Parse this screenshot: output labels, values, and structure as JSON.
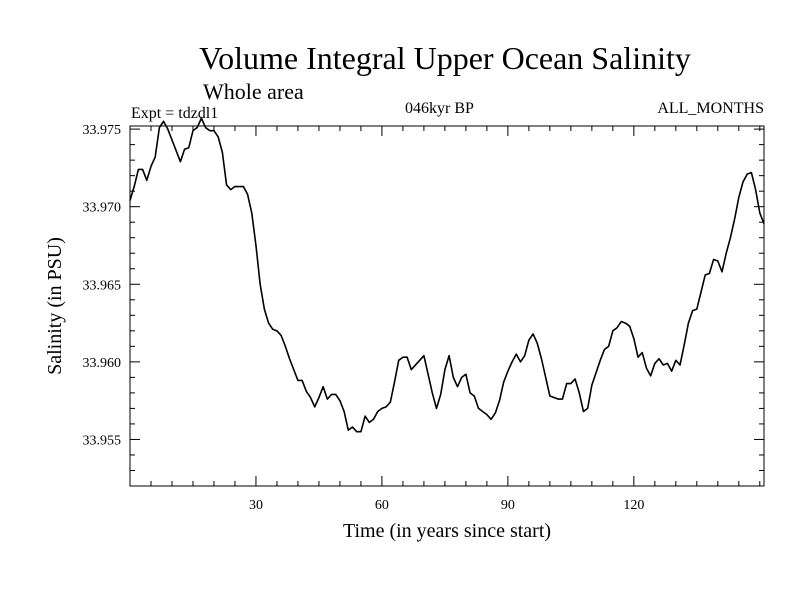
{
  "chart_data": {
    "type": "line",
    "title": "Volume Integral Upper Ocean Salinity",
    "subtitle": "Whole area",
    "annotations": {
      "experiment": "Expt = tdzdl1",
      "period": "046kyr BP",
      "months": "ALL_MONTHS"
    },
    "xlabel": "Time (in years since start)",
    "ylabel": "Salinity (in PSU)",
    "xlim": [
      0,
      151
    ],
    "ylim": [
      33.952,
      33.9752
    ],
    "xticks": [
      30,
      60,
      90,
      120
    ],
    "yticks": [
      33.955,
      33.96,
      33.965,
      33.97,
      33.975
    ],
    "ytick_labels": [
      "33.955",
      "33.960",
      "33.965",
      "33.970",
      "33.975"
    ],
    "series": [
      {
        "name": "Salinity",
        "color": "#000000",
        "x": [
          0,
          1,
          2,
          3,
          4,
          5,
          6,
          7,
          8,
          9,
          10,
          11,
          12,
          13,
          14,
          15,
          16,
          17,
          18,
          19,
          20,
          21,
          22,
          23,
          24,
          25,
          26,
          27,
          28,
          29,
          30,
          31,
          32,
          33,
          34,
          35,
          36,
          37,
          38,
          39,
          40,
          41,
          42,
          43,
          44,
          45,
          46,
          47,
          48,
          49,
          50,
          51,
          52,
          53,
          54,
          55,
          56,
          57,
          58,
          59,
          60,
          61,
          62,
          63,
          64,
          65,
          66,
          67,
          68,
          69,
          70,
          71,
          72,
          73,
          74,
          75,
          76,
          77,
          78,
          79,
          80,
          81,
          82,
          83,
          84,
          85,
          86,
          87,
          88,
          89,
          90,
          91,
          92,
          93,
          94,
          95,
          96,
          97,
          98,
          99,
          100,
          101,
          102,
          103,
          104,
          105,
          106,
          107,
          108,
          109,
          110,
          111,
          112,
          113,
          114,
          115,
          116,
          117,
          118,
          119,
          120,
          121,
          122,
          123,
          124,
          125,
          126,
          127,
          128,
          129,
          130,
          131,
          132,
          133,
          134,
          135,
          136,
          137,
          138,
          139,
          140,
          141,
          142,
          143,
          144,
          145,
          146,
          147,
          148,
          149,
          150,
          151
        ],
        "values": [
          33.9704,
          33.9713,
          33.9724,
          33.9724,
          33.9717,
          33.9726,
          33.9732,
          33.9751,
          33.9755,
          33.975,
          33.9743,
          33.9736,
          33.9729,
          33.9737,
          33.9738,
          33.9749,
          33.9751,
          33.9757,
          33.9751,
          33.9749,
          33.9749,
          33.9745,
          33.9735,
          33.9714,
          33.9711,
          33.9713,
          33.9713,
          33.9713,
          33.9708,
          33.9696,
          33.9675,
          33.965,
          33.9634,
          33.9625,
          33.9621,
          33.962,
          33.9617,
          33.961,
          33.9602,
          33.9595,
          33.9588,
          33.9588,
          33.9581,
          33.9577,
          33.9571,
          33.9577,
          33.9584,
          33.9576,
          33.9579,
          33.9579,
          33.9575,
          33.9568,
          33.9556,
          33.9558,
          33.9555,
          33.9555,
          33.9565,
          33.9561,
          33.9563,
          33.9568,
          33.957,
          33.9571,
          33.9574,
          33.9587,
          33.9601,
          33.9603,
          33.9603,
          33.9595,
          33.9598,
          33.9601,
          33.9604,
          33.9592,
          33.958,
          33.957,
          33.9579,
          33.9595,
          33.9604,
          33.959,
          33.9584,
          33.959,
          33.9592,
          33.958,
          33.9578,
          33.957,
          33.9568,
          33.9566,
          33.9563,
          33.9567,
          33.9575,
          33.9587,
          33.9594,
          33.96,
          33.9605,
          33.96,
          33.9604,
          33.9614,
          33.9618,
          33.9612,
          33.9602,
          33.959,
          33.9578,
          33.9577,
          33.9576,
          33.9576,
          33.9586,
          33.9586,
          33.9589,
          33.958,
          33.9568,
          33.957,
          33.9585,
          33.9593,
          33.9601,
          33.9608,
          33.961,
          33.962,
          33.9622,
          33.9626,
          33.9625,
          33.9623,
          33.9615,
          33.9603,
          33.9606,
          33.9596,
          33.9591,
          33.9599,
          33.9602,
          33.9598,
          33.9599,
          33.9594,
          33.9601,
          33.9598,
          33.9611,
          33.9625,
          33.9633,
          33.9634,
          33.9645,
          33.9656,
          33.9657,
          33.9666,
          33.9665,
          33.9658,
          33.967,
          33.968,
          33.9692,
          33.9706,
          33.9716,
          33.9721,
          33.9722,
          33.9711,
          33.9696,
          33.9689
        ]
      }
    ]
  }
}
